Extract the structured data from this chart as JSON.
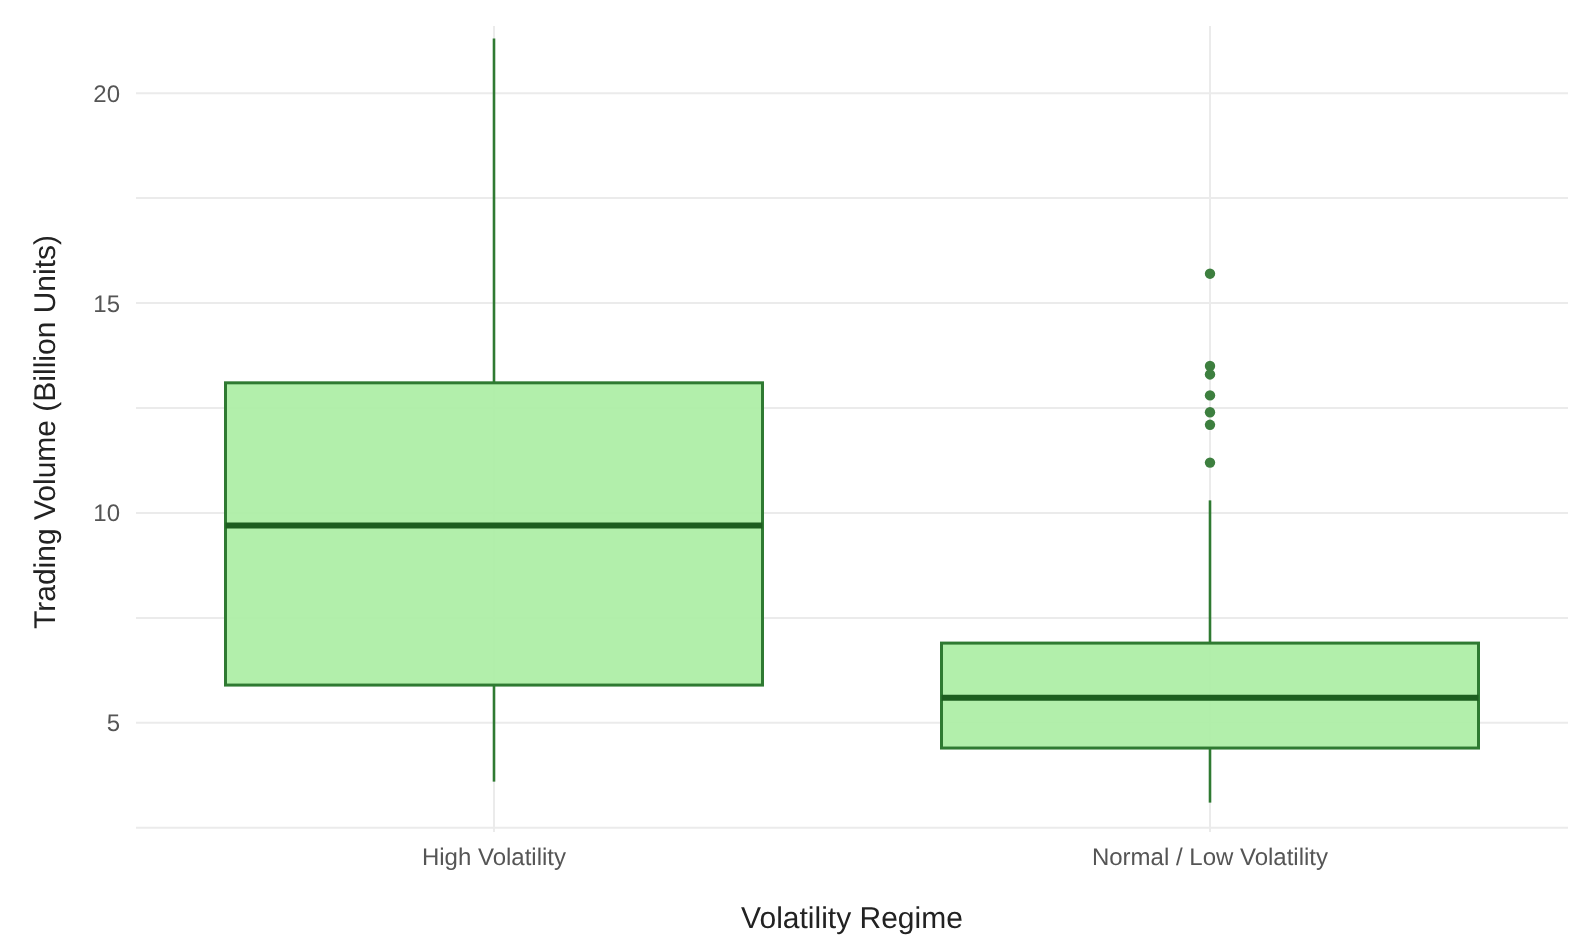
{
  "chart_data": {
    "type": "box",
    "xlabel": "Volatility Regime",
    "ylabel": "Trading Volume (Billion Units)",
    "categories": [
      "High Volatility",
      "Normal / Low Volatility"
    ],
    "series": [
      {
        "color": "#aeeea6",
        "boxes": [
          {
            "low": 3.6,
            "q1": 5.9,
            "median": 9.7,
            "q3": 13.1,
            "high": 21.3
          },
          {
            "low": 3.1,
            "q1": 4.4,
            "median": 5.6,
            "q3": 6.9,
            "high": 10.3,
            "outliers": [
              15.7,
              13.5,
              13.3,
              12.8,
              12.4,
              12.1,
              11.2
            ]
          }
        ]
      }
    ],
    "ylim": [
      2.4,
      21.6
    ],
    "yticks": [
      5,
      10,
      15,
      20
    ],
    "grid": true
  }
}
